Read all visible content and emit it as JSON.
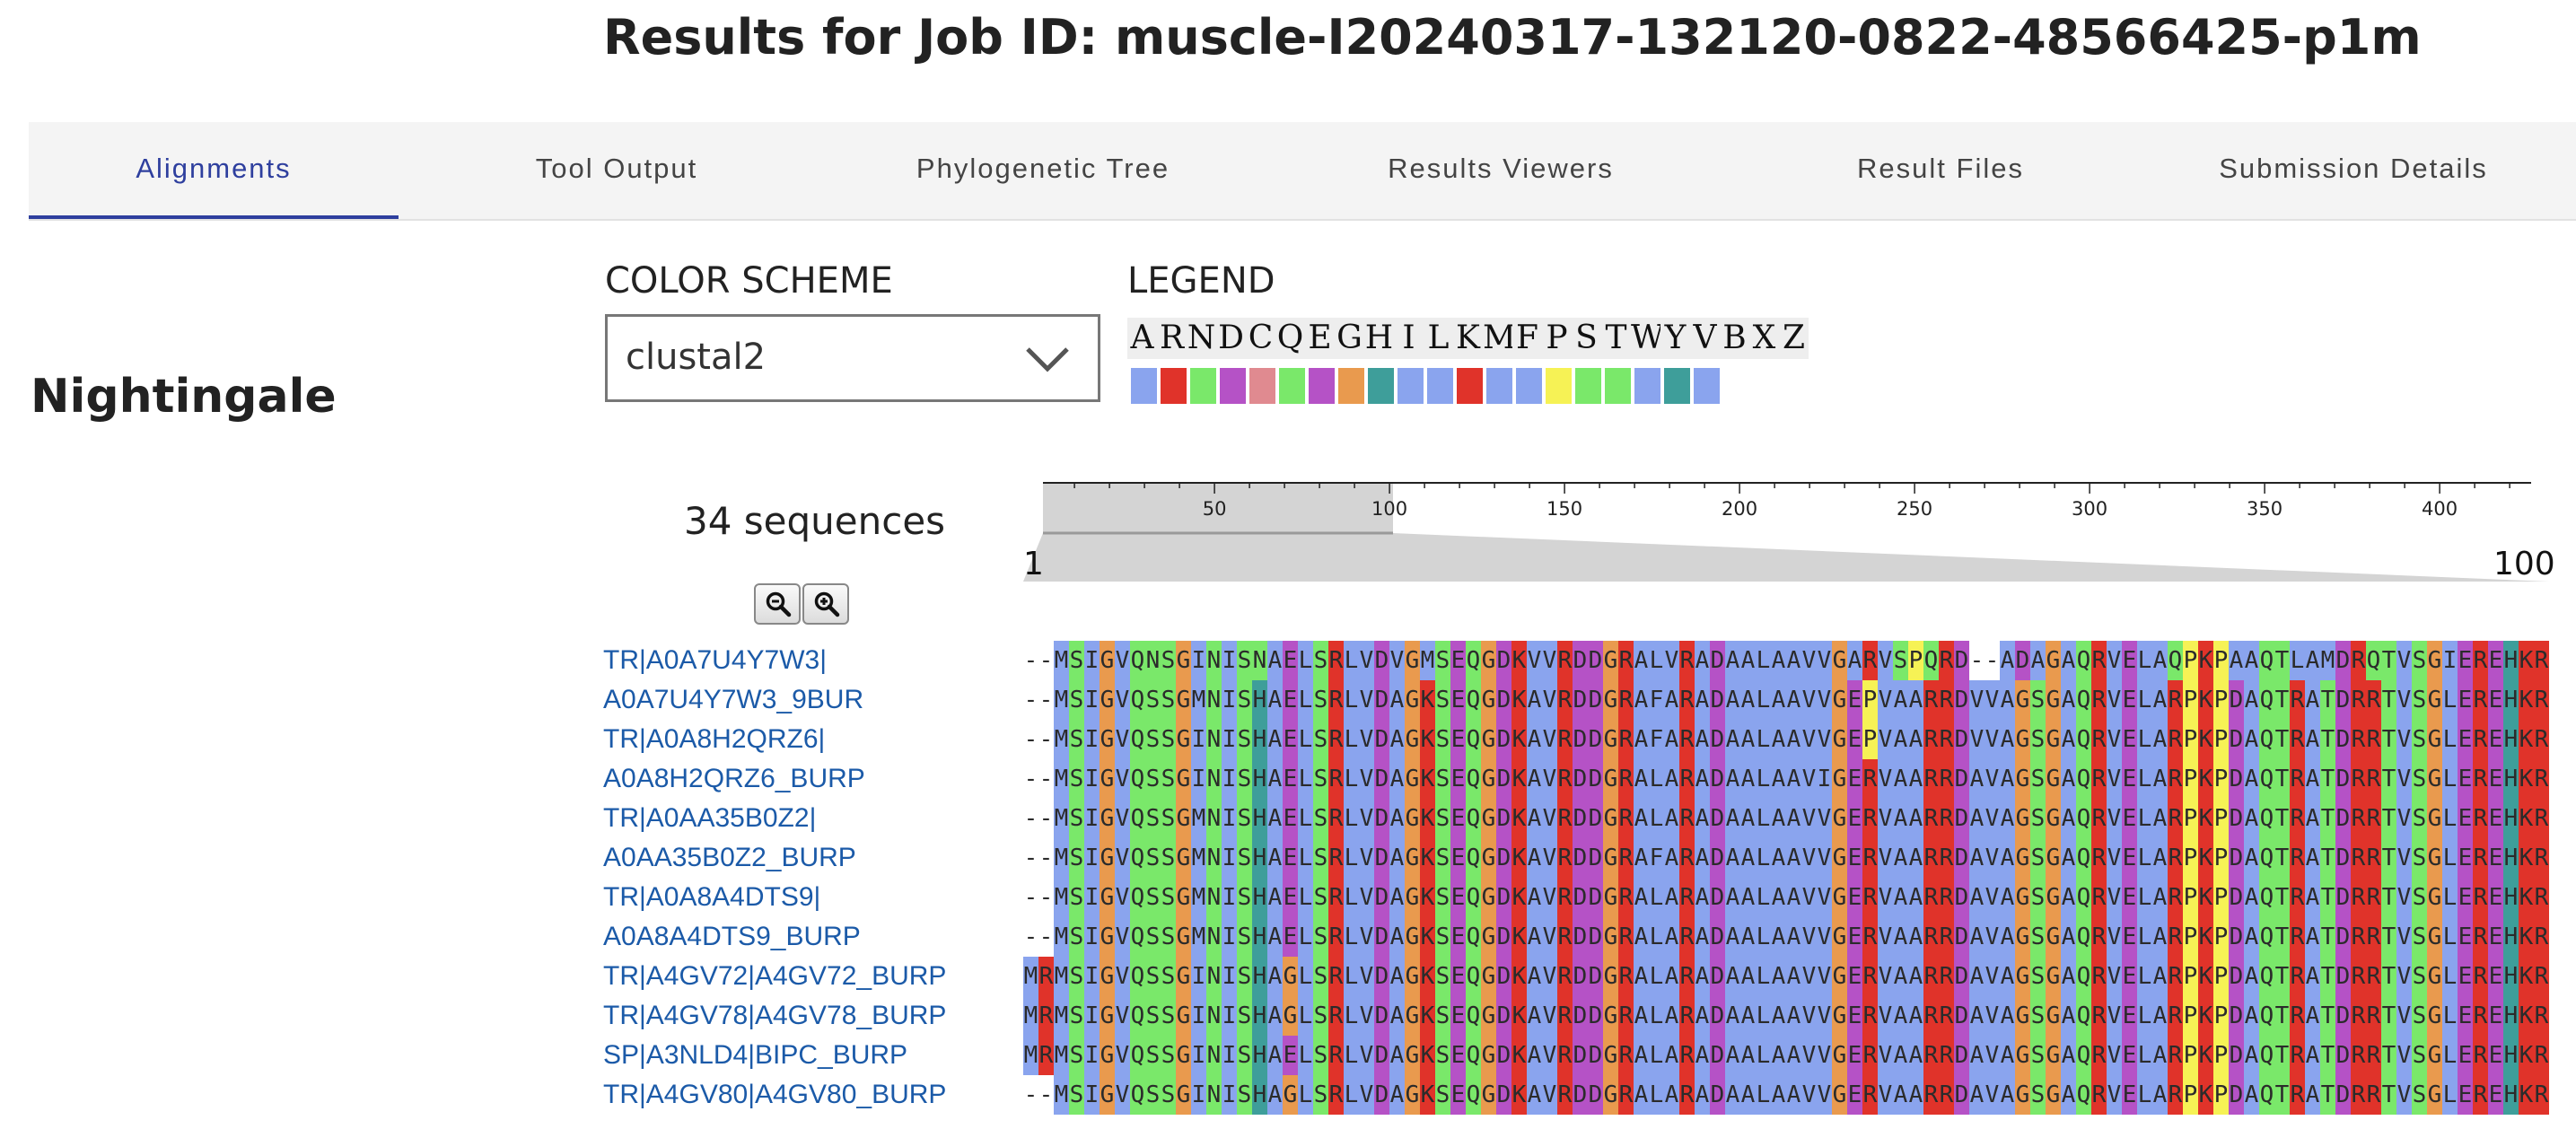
{
  "page": {
    "title": "Results for Job ID: muscle-I20240317-132120-0822-48566425-p1m"
  },
  "tabs": [
    {
      "label": "Alignments",
      "active": true
    },
    {
      "label": "Tool Output",
      "active": false
    },
    {
      "label": "Phylogenetic Tree",
      "active": false
    },
    {
      "label": "Results Viewers",
      "active": false
    },
    {
      "label": "Result Files",
      "active": false
    },
    {
      "label": "Submission Details",
      "active": false
    }
  ],
  "viewer": {
    "heading": "Nightingale",
    "color_scheme_label": "COLOR SCHEME",
    "color_scheme_value": "clustal2",
    "legend_label": "LEGEND",
    "legend_letters": [
      "A",
      "R",
      "N",
      "D",
      "C",
      "Q",
      "E",
      "G",
      "H",
      "I",
      "L",
      "K",
      "M",
      "F",
      "P",
      "S",
      "T",
      "W",
      "Y",
      "V",
      "B",
      "X",
      "Z"
    ],
    "legend_colors": [
      "#8aa4ee",
      "#e0332a",
      "#7ae86a",
      "#b552c6",
      "#e08a90",
      "#7ae86a",
      "#b552c6",
      "#e99a4e",
      "#3e9e9a",
      "#8aa4ee",
      "#8aa4ee",
      "#e0332a",
      "#8aa4ee",
      "#8aa4ee",
      "#f6f255",
      "#7ae86a",
      "#7ae86a",
      "#8aa4ee",
      "#3e9e9a",
      "#8aa4ee"
    ],
    "sequence_count": "34 sequences",
    "zoom_out_icon": "zoom-out-icon",
    "zoom_in_icon": "zoom-in-icon",
    "ruler_ticks": [
      "50",
      "100",
      "150",
      "200",
      "250",
      "300",
      "350",
      "400"
    ],
    "range_start": "1",
    "range_end": "100"
  },
  "sequences": [
    {
      "name": "TR|A0A7U4Y7W3|",
      "seq": "--MSIGVQNSGINISNAELSRLVDVGMSEQGDKVVRDDGRALVRADAALAAVVGARVSPQRD--ADAGAQRVELAQPKPAAQTLAMDRQTVSGIEREHKR"
    },
    {
      "name": "A0A7U4Y7W3_9BUR",
      "seq": "--MSIGVQSSGMNISHAELSRLVDAGKSEQGDKAVRDDGRAFARADAALAAVVGEPVAARRDVVAGSGAQRVELARPKPDAQTRATDRRTVSGLEREHKR"
    },
    {
      "name": "TR|A0A8H2QRZ6|",
      "seq": "--MSIGVQSSGINISHAELSRLVDAGKSEQGDKAVRDDGRAFARADAALAAVVGEPVAARRDVVAGSGAQRVELARPKPDAQTRATDRRTVSGLEREHKR"
    },
    {
      "name": "A0A8H2QRZ6_BURP",
      "seq": "--MSIGVQSSGINISHAELSRLVDAGKSEQGDKAVRDDGRALARADAALAAVIGERVAARRDAVAGSGAQRVELARPKPDAQTRATDRRTVSGLEREHKR"
    },
    {
      "name": "TR|A0AA35B0Z2|",
      "seq": "--MSIGVQSSGMNISHAELSRLVDAGKSEQGDKAVRDDGRALARADAALAAVVGERVAARRDAVAGSGAQRVELARPKPDAQTRATDRRTVSGLEREHKR"
    },
    {
      "name": "A0AA35B0Z2_BURP",
      "seq": "--MSIGVQSSGMNISHAELSRLVDAGKSEQGDKAVRDDGRAFARADAALAAVVGERVAARRDAVAGSGAQRVELARPKPDAQTRATDRRTVSGLEREHKR"
    },
    {
      "name": "TR|A0A8A4DTS9|",
      "seq": "--MSIGVQSSGMNISHAELSRLVDAGKSEQGDKAVRDDGRALARADAALAAVVGERVAARRDAVAGSGAQRVELARPKPDAQTRATDRRTVSGLEREHKR"
    },
    {
      "name": "A0A8A4DTS9_BURP",
      "seq": "--MSIGVQSSGMNISHAELSRLVDAGKSEQGDKAVRDDGRALARADAALAAVVGERVAARRDAVAGSGAQRVELARPKPDAQTRATDRRTVSGLEREHKR"
    },
    {
      "name": "TR|A4GV72|A4GV72_BURP",
      "seq": "MRMSIGVQSSGINISHAGLSRLVDAGKSEQGDKAVRDDGRALARADAALAAVVGERVAARRDAVAGSGAQRVELARPKPDAQTRATDRRTVSGLEREHKR"
    },
    {
      "name": "TR|A4GV78|A4GV78_BURP",
      "seq": "MRMSIGVQSSGINISHAGLSRLVDAGKSEQGDKAVRDDGRALARADAALAAVVGERVAARRDAVAGSGAQRVELARPKPDAQTRATDRRTVSGLEREHKR"
    },
    {
      "name": "SP|A3NLD4|BIPC_BURP",
      "seq": "MRMSIGVQSSGINISHAELSRLVDAGKSEQGDKAVRDDGRALARADAALAAVVGERVAARRDAVAGSGAQRVELARPKPDAQTRATDRRTVSGLEREHKR"
    },
    {
      "name": "TR|A4GV80|A4GV80_BURP",
      "seq": "--MSIGVQSSGINISHAGLSRLVDAGKSEQGDKAVRDDGRALARADAALAAVVGERVAARRDAVAGSGAQRVELARPKPDAQTRATDRRTVSGLEREHKR"
    }
  ]
}
